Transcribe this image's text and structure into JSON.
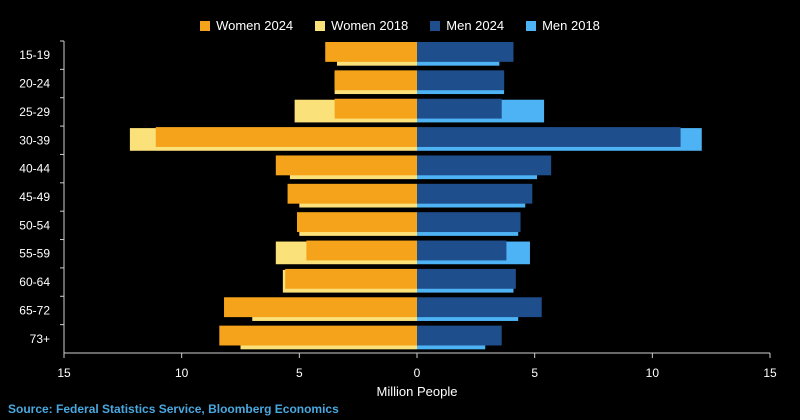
{
  "chart_data": {
    "type": "bar",
    "orientation": "horizontal",
    "layout": "population-pyramid",
    "categories": [
      "15-19",
      "20-24",
      "25-29",
      "30-39",
      "40-44",
      "45-49",
      "50-54",
      "55-59",
      "60-64",
      "65-72",
      "73+"
    ],
    "series": [
      {
        "name": "Women 2024",
        "color": "#F5A31A",
        "side": "left",
        "values": [
          3.9,
          3.5,
          3.5,
          11.1,
          6.0,
          5.5,
          5.1,
          4.7,
          5.6,
          8.2,
          8.4
        ]
      },
      {
        "name": "Women 2018",
        "color": "#FBE17A",
        "side": "left",
        "values": [
          3.4,
          3.5,
          5.2,
          12.2,
          5.4,
          5.0,
          5.0,
          6.0,
          5.7,
          7.0,
          7.5
        ]
      },
      {
        "name": "Men 2024",
        "color": "#1F4E8C",
        "side": "right",
        "values": [
          4.1,
          3.7,
          3.6,
          11.2,
          5.7,
          4.9,
          4.4,
          3.8,
          4.2,
          5.3,
          3.6
        ]
      },
      {
        "name": "Men 2018",
        "color": "#4DB3F5",
        "side": "right",
        "values": [
          3.5,
          3.7,
          5.4,
          12.1,
          5.1,
          4.6,
          4.3,
          4.8,
          4.1,
          4.3,
          2.9
        ]
      }
    ],
    "xlabel": "Million People",
    "xlim": [
      -15,
      15
    ],
    "xticks": [
      -15,
      -10,
      -5,
      0,
      5,
      10,
      15
    ],
    "xtick_labels": [
      "15",
      "10",
      "5",
      "0",
      "5",
      "10",
      "15"
    ],
    "legend_position": "top",
    "grid": false
  },
  "source": "Source: Federal Statistics Service, Bloomberg Economics"
}
